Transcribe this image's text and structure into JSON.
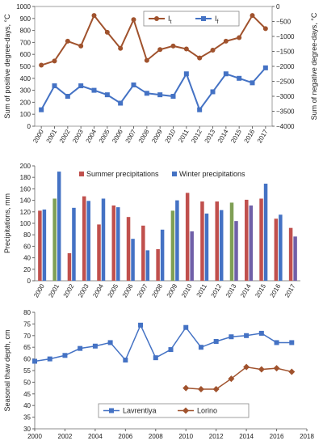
{
  "chart_data": [
    {
      "type": "line",
      "x": [
        "2000",
        "2001",
        "2002",
        "2003",
        "2004",
        "2005",
        "2006",
        "2007",
        "2008",
        "2009",
        "2010",
        "2011",
        "2012",
        "2013",
        "2014",
        "2015",
        "2016",
        "2017"
      ],
      "ylabel": "Sum of positive degree-days, °C",
      "y2label": "Sum of negative degree-days, °C",
      "ylim": [
        0,
        1000
      ],
      "y2lim": [
        -4000,
        0
      ],
      "yticks": [
        0,
        100,
        200,
        300,
        400,
        500,
        600,
        700,
        800,
        900,
        1000
      ],
      "y2ticks": [
        -4000,
        -3500,
        -3000,
        -2500,
        -2000,
        -1500,
        -1000,
        -500,
        0
      ],
      "grid": false,
      "legend_position": "top-right",
      "series": [
        {
          "name": "It",
          "label_main": "I",
          "label_sub": "t",
          "axis": "left",
          "color": "#A0522D",
          "marker": "circle",
          "values": [
            510,
            545,
            710,
            670,
            925,
            785,
            650,
            890,
            550,
            640,
            670,
            645,
            570,
            635,
            710,
            740,
            925,
            815
          ]
        },
        {
          "name": "If",
          "label_main": "I",
          "label_sub": "f",
          "axis": "right",
          "color": "#4472C4",
          "marker": "square",
          "values": [
            -3450,
            -2650,
            -3000,
            -2650,
            -2800,
            -2950,
            -3230,
            -2620,
            -2900,
            -2950,
            -3000,
            -2250,
            -3450,
            -2850,
            -2250,
            -2400,
            -2550,
            -2050
          ]
        }
      ]
    },
    {
      "type": "bar",
      "categories": [
        "2000",
        "2001",
        "2002",
        "2003",
        "2004",
        "2005",
        "2006",
        "2007",
        "2008",
        "2009",
        "2010",
        "2011",
        "2012",
        "2013",
        "2014",
        "2015",
        "2016",
        "2017"
      ],
      "ylabel": "Precipitations, mm",
      "ylim": [
        0,
        200
      ],
      "yticks": [
        0,
        20,
        40,
        60,
        80,
        100,
        120,
        140,
        160,
        180,
        200
      ],
      "grid": false,
      "legend_position": "top",
      "series": [
        {
          "name": "Summer precipitations",
          "values": [
            122,
            143,
            48,
            147,
            98,
            131,
            111,
            96,
            55,
            122,
            153,
            138,
            138,
            136,
            141,
            143,
            108,
            92
          ],
          "colors": [
            "#C0504D",
            "#7F9F55",
            "#C0504D",
            "#C0504D",
            "#C0504D",
            "#C0504D",
            "#C0504D",
            "#C0504D",
            "#C0504D",
            "#7F9F55",
            "#C0504D",
            "#C0504D",
            "#C0504D",
            "#7F9F55",
            "#C0504D",
            "#C0504D",
            "#C0504D",
            "#C0504D"
          ]
        },
        {
          "name": "Winter precipitations",
          "values": [
            124,
            190,
            127,
            139,
            143,
            128,
            73,
            53,
            89,
            140,
            86,
            117,
            123,
            104,
            131,
            169,
            115,
            77
          ],
          "colors": [
            "#4472C4",
            "#4472C4",
            "#4472C4",
            "#4472C4",
            "#4472C4",
            "#4472C4",
            "#4472C4",
            "#4472C4",
            "#4472C4",
            "#4472C4",
            "#7060A8",
            "#4472C4",
            "#4472C4",
            "#7060A8",
            "#7060A8",
            "#4472C4",
            "#4472C4",
            "#7060A8"
          ]
        }
      ],
      "legend_colors": {
        "summer": "#C0504D",
        "winter": "#4472C4"
      }
    },
    {
      "type": "line",
      "ylabel": "Seasonal thaw depth, cm",
      "xlim": [
        2000,
        2018
      ],
      "ylim": [
        30,
        80
      ],
      "xticks": [
        2000,
        2002,
        2004,
        2006,
        2008,
        2010,
        2012,
        2014,
        2016,
        2018
      ],
      "yticks": [
        30,
        35,
        40,
        45,
        50,
        55,
        60,
        65,
        70,
        75,
        80
      ],
      "grid": false,
      "legend_position": "bottom-left",
      "series": [
        {
          "name": "Lavrentiya",
          "color": "#4472C4",
          "marker": "square",
          "x": [
            2000,
            2001,
            2002,
            2003,
            2004,
            2005,
            2006,
            2007,
            2008,
            2009,
            2010,
            2011,
            2012,
            2013,
            2014,
            2015,
            2016,
            2017
          ],
          "y": [
            59,
            60,
            61.5,
            64.5,
            65.5,
            67,
            59.5,
            74.5,
            60.5,
            64,
            73.5,
            65,
            67.5,
            69.5,
            70,
            71,
            67,
            67
          ]
        },
        {
          "name": "Lorino",
          "color": "#A0522D",
          "marker": "diamond",
          "x": [
            2010,
            2011,
            2012,
            2013,
            2014,
            2015,
            2016,
            2017
          ],
          "y": [
            47.5,
            47,
            47,
            51.5,
            56.5,
            55.5,
            56,
            54.5
          ]
        }
      ]
    }
  ]
}
